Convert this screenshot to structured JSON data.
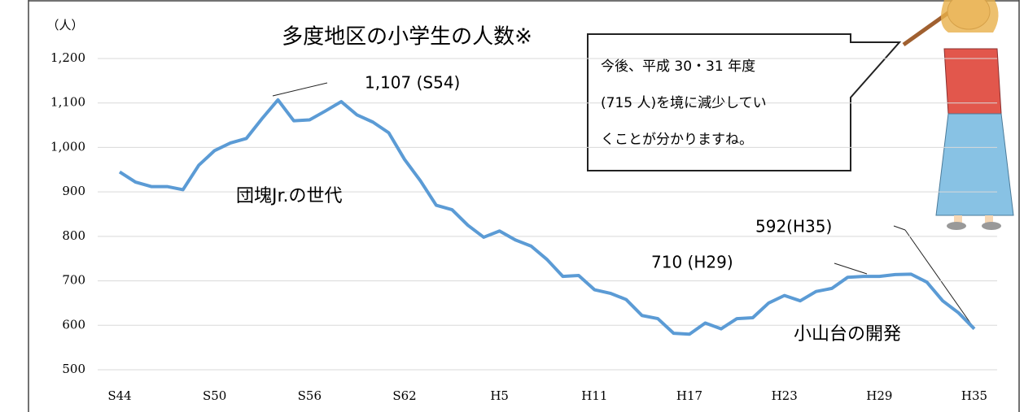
{
  "chart_data": {
    "type": "line",
    "title": "多度地区の小学生の人数※",
    "y_unit": "（人）",
    "categories": [
      "S44",
      null,
      null,
      null,
      null,
      null,
      "S50",
      null,
      null,
      null,
      null,
      null,
      "S56",
      null,
      null,
      null,
      null,
      null,
      "S62",
      null,
      null,
      null,
      null,
      null,
      "H5",
      null,
      null,
      null,
      null,
      null,
      "H11",
      null,
      null,
      null,
      null,
      null,
      "H17",
      null,
      null,
      null,
      null,
      null,
      "H23",
      null,
      null,
      null,
      null,
      null,
      "H29",
      null,
      null,
      null,
      null,
      null,
      "H35"
    ],
    "values": [
      945,
      922,
      912,
      912,
      905,
      960,
      993,
      1010,
      1020,
      1065,
      1107,
      1060,
      1062,
      1082,
      1103,
      1073,
      1057,
      1033,
      973,
      925,
      870,
      860,
      825,
      798,
      812,
      792,
      778,
      748,
      710,
      712,
      680,
      672,
      658,
      622,
      615,
      582,
      580,
      605,
      592,
      615,
      617,
      650,
      667,
      655,
      676,
      683,
      708,
      710,
      710,
      714,
      715,
      697,
      655,
      628,
      592
    ],
    "color": "#5b9bd5",
    "ylim": [
      500,
      1200
    ],
    "yticks": [
      500,
      600,
      700,
      800,
      900,
      {
        "value": 1000,
        "label": "1,000"
      },
      {
        "value": 1100,
        "label": "1,100"
      },
      {
        "value": 1200,
        "label": "1,200"
      }
    ],
    "annotations": [
      "1,107 (S54)",
      "団塊Jr.の世代",
      "710 (H29)",
      "592(H35)",
      "小山台の開発"
    ],
    "callout": [
      "今後、平成 30・31 年度",
      "(715 人)を境に減少してい",
      "くことが分かりますね。"
    ]
  }
}
